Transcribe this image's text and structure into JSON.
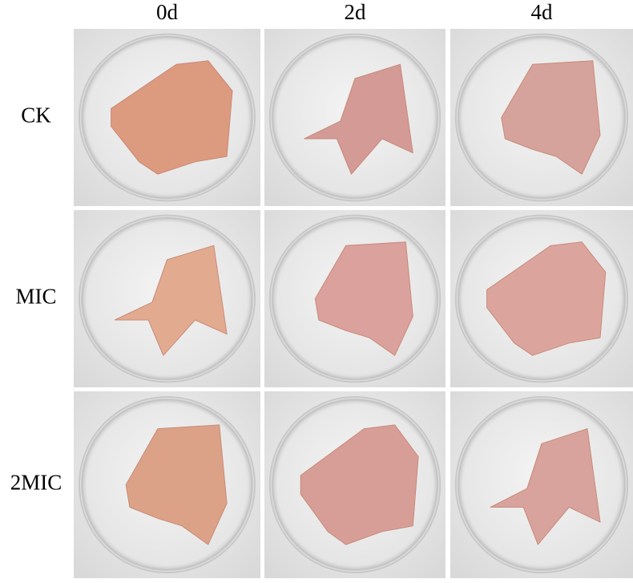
{
  "columns": [
    "0d",
    "2d",
    "4d"
  ],
  "rows": [
    "CK",
    "MIC",
    "2MIC"
  ]
}
